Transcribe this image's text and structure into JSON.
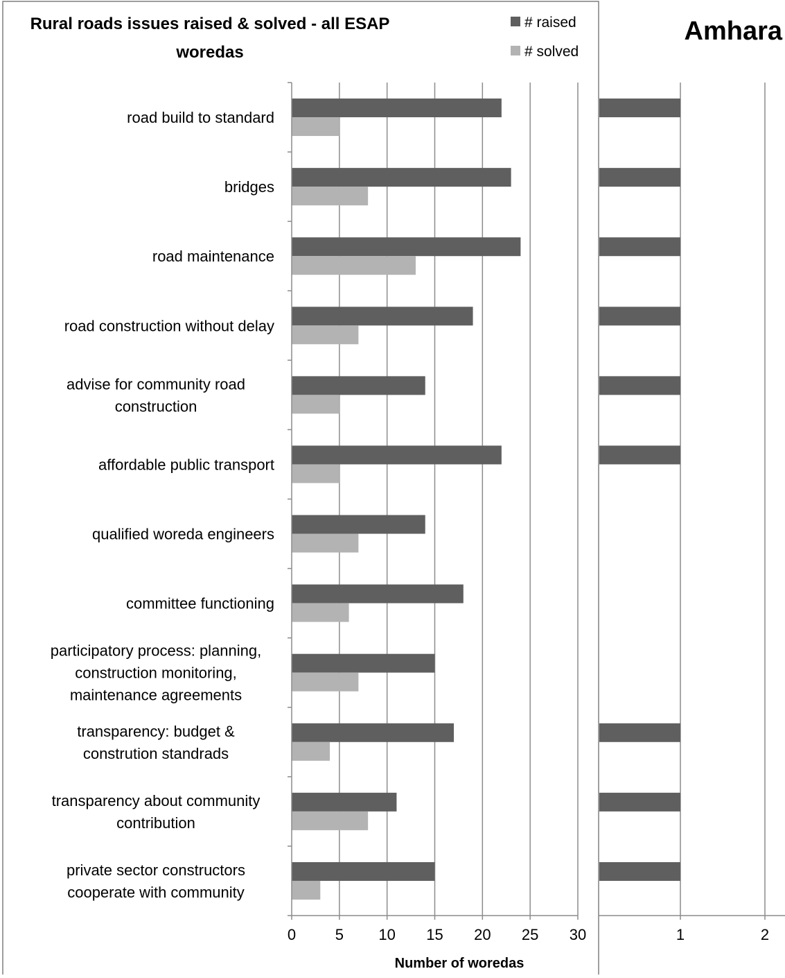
{
  "colors": {
    "raised": "#5f5f5f",
    "solved": "#b3b3b3",
    "grid": "#8c8c8c",
    "frame": "#7f7f7f"
  },
  "chart_data": [
    {
      "type": "bar",
      "orientation": "horizontal",
      "title_lines": [
        "Rural roads issues raised & solved - all ESAP",
        "woredas"
      ],
      "xlabel": "Number of woredas",
      "xlim": [
        0,
        30
      ],
      "xticks": [
        "0",
        "5",
        "10",
        "15",
        "20",
        "25",
        "30"
      ],
      "grid": true,
      "legend_position": "top-right",
      "categories": [
        [
          "road build to standard"
        ],
        [
          "bridges"
        ],
        [
          "road maintenance"
        ],
        [
          "road construction without delay"
        ],
        [
          "advise for community road",
          "construction"
        ],
        [
          "affordable public transport"
        ],
        [
          "qualified woreda engineers"
        ],
        [
          "committee functioning"
        ],
        [
          "participatory process: planning,",
          "construction monitoring,",
          "maintenance agreements"
        ],
        [
          "transparency: budget &",
          "constrution standrads"
        ],
        [
          "transparency about community",
          "contribution"
        ],
        [
          "private sector constructors",
          "cooperate with community"
        ]
      ],
      "series": [
        {
          "name": "# raised",
          "values": [
            22,
            23,
            24,
            19,
            14,
            22,
            14,
            18,
            15,
            17,
            11,
            15
          ]
        },
        {
          "name": "# solved",
          "values": [
            5,
            8,
            13,
            7,
            5,
            5,
            7,
            6,
            7,
            4,
            8,
            3
          ]
        }
      ]
    },
    {
      "type": "bar",
      "orientation": "horizontal",
      "title": "Amhara",
      "xlim": [
        0,
        2
      ],
      "xticks": [
        "1",
        "2"
      ],
      "grid": true,
      "series": [
        {
          "name": "",
          "values": [
            1,
            1,
            1,
            1,
            1,
            1,
            null,
            null,
            null,
            1,
            1,
            1
          ]
        }
      ]
    }
  ]
}
